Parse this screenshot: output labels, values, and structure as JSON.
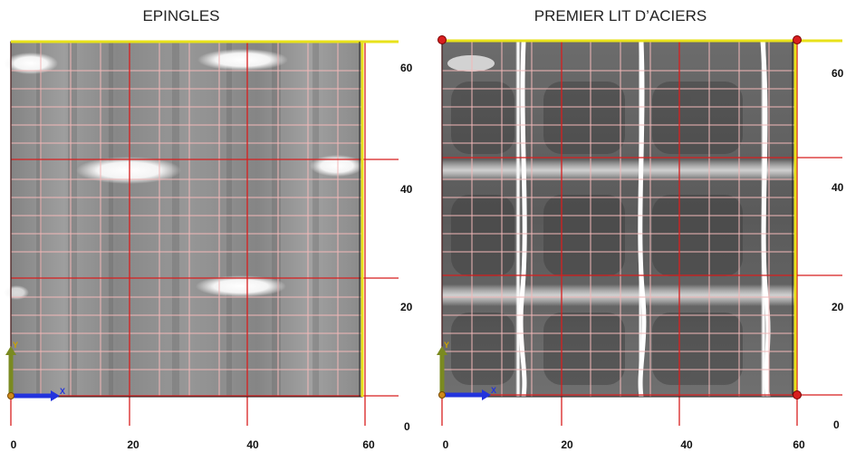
{
  "panels": [
    {
      "title": "EPINGLES",
      "x_ticks": [
        "0",
        "20",
        "40",
        "60"
      ],
      "y_ticks": [
        "60",
        "40",
        "20",
        "0"
      ],
      "axis_labels": {
        "x": "X",
        "y": "Y"
      },
      "colors": {
        "grid_minor": "#f2b8b8",
        "grid_major": "#d81f1f",
        "border": "#e8e21a",
        "axis_x": "#2233dd",
        "axis_y": "#7a8a20"
      }
    },
    {
      "title": "PREMIER LIT D’ACIERS",
      "x_ticks": [
        "0",
        "20",
        "40",
        "60"
      ],
      "y_ticks": [
        "60",
        "40",
        "20",
        "0"
      ],
      "axis_labels": {
        "x": "X",
        "y": "Y"
      },
      "colors": {
        "grid_minor": "#f2b8b8",
        "grid_major": "#d81f1f",
        "border": "#e8e21a",
        "axis_x": "#2233dd",
        "axis_y": "#7a8a20"
      }
    }
  ]
}
